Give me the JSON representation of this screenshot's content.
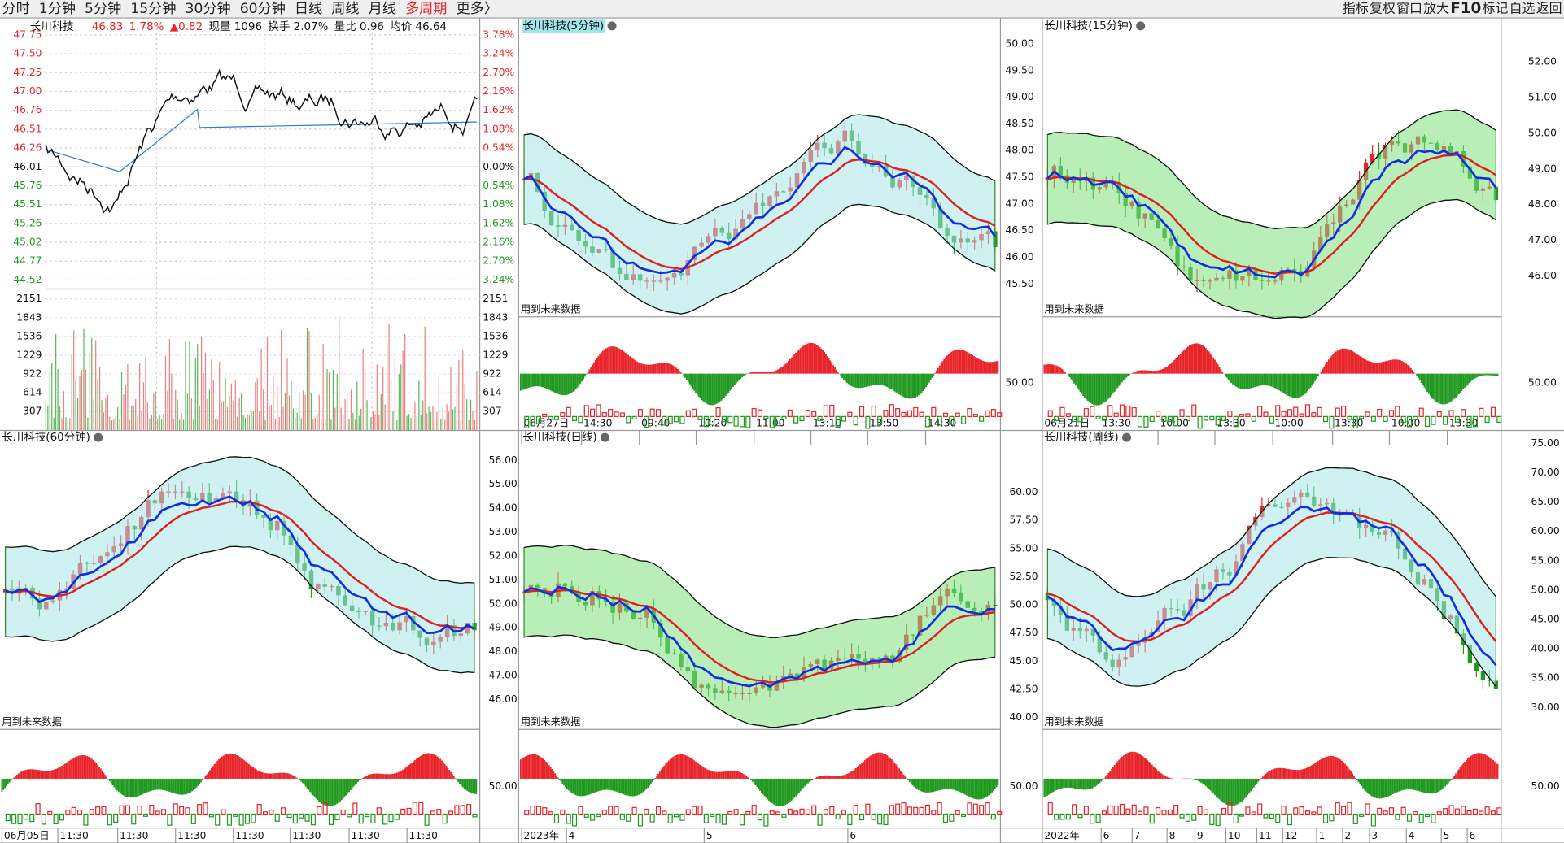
{
  "toolbar": {
    "tabs": [
      "分时",
      "1分钟",
      "5分钟",
      "15分钟",
      "30分钟",
      "60分钟",
      "日线",
      "周线",
      "月线",
      "多周期",
      "更多〉"
    ],
    "tools": [
      "指标",
      "复权",
      "窗口",
      "放大",
      "F10",
      "标记",
      "自选",
      "返回"
    ]
  },
  "intraday": {
    "title": "长川科技",
    "quote": [
      "46.83",
      "1.78%",
      "▲0.82",
      "现量 1096",
      "换手 2.07%",
      "量比 0.96",
      "均价 46.64"
    ],
    "price_ticks": [
      "47.75",
      "47.50",
      "47.25",
      "47.00",
      "46.76",
      "46.51",
      "46.26",
      "46.01",
      "45.76",
      "45.51",
      "45.26",
      "45.02",
      "44.77",
      "44.52"
    ],
    "pct_ticks": [
      "3.78%",
      "3.24%",
      "2.70%",
      "2.16%",
      "1.62%",
      "1.08%",
      "0.54%",
      "0.00%",
      "0.54%",
      "1.08%",
      "1.62%",
      "2.16%",
      "2.70%",
      "3.24%"
    ],
    "volume_ticks": [
      "2151",
      "1843",
      "1536",
      "1229",
      "922",
      "614",
      "307"
    ]
  },
  "panels": [
    {
      "title": "长川科技(5分钟)",
      "axis": [
        "50.00",
        "49.50",
        "49.00",
        "48.50",
        "48.00",
        "47.50",
        "47.00",
        "46.50",
        "46.00",
        "45.50"
      ],
      "sub_axis": "50.00",
      "note": "用到未来数据",
      "xticks": [
        "06月27日",
        "14:30",
        "09:40",
        "10:20",
        "11:00",
        "13:10",
        "13:50",
        "14:30"
      ]
    },
    {
      "title": "长川科技(15分钟)",
      "axis": [
        "52.00",
        "51.00",
        "50.00",
        "49.00",
        "48.00",
        "47.00",
        "46.00"
      ],
      "sub_axis": "50.00",
      "note": "用到未来数据",
      "xticks": [
        "06月21日",
        "13:30",
        "10:00",
        "13:30",
        "10:00",
        "13:30",
        "10:00",
        "13:30"
      ]
    },
    {
      "title": "长川科技(60分钟)",
      "axis": [
        "56.00",
        "55.00",
        "54.00",
        "53.00",
        "52.00",
        "51.00",
        "50.00",
        "49.00",
        "48.00",
        "47.00",
        "46.00"
      ],
      "sub_axis": "50.00",
      "note": "用到未来数据",
      "xticks": [
        "06月05日",
        "11:30",
        "11:30",
        "11:30",
        "11:30",
        "11:30",
        "11:30",
        "11:30"
      ]
    },
    {
      "title": "长川科技(日线)",
      "axis": [
        "60.00",
        "57.50",
        "55.00",
        "52.50",
        "50.00",
        "47.50",
        "45.00",
        "42.50",
        "40.00"
      ],
      "sub_axis": "50.00",
      "note": "用到未来数据",
      "xticks": [
        "2023年",
        "4",
        "5",
        "6"
      ]
    },
    {
      "title": "长川科技(周线)",
      "axis": [
        "75.00",
        "70.00",
        "65.00",
        "60.00",
        "55.00",
        "50.00",
        "45.00",
        "40.00",
        "35.00",
        "30.00"
      ],
      "sub_axis": "50.00",
      "note": "用到未来数据",
      "xticks": [
        "2022年",
        "6",
        "7",
        "8",
        "9",
        "10",
        "11",
        "12",
        "1",
        "2",
        "3",
        "4",
        "5",
        "6"
      ]
    }
  ]
}
